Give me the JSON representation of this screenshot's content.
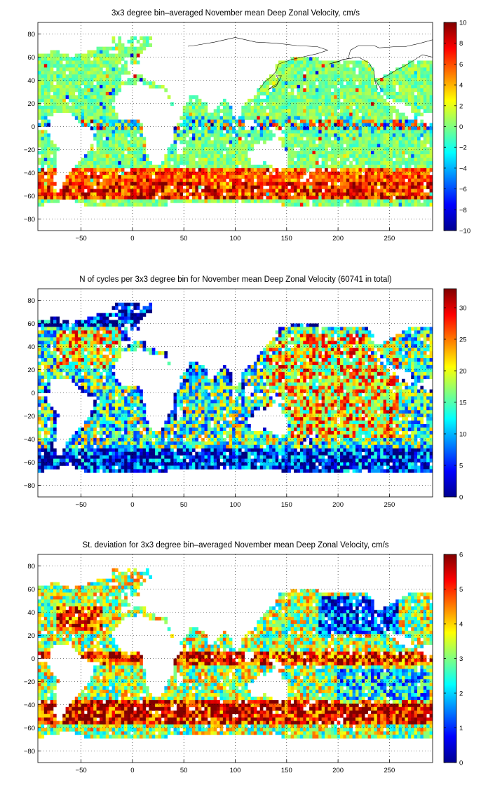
{
  "figure": {
    "panels": [
      {
        "id": "velocity",
        "title": "3x3 degree bin–averaged November mean Deep Zonal Velocity, cm/s",
        "colorbar": {
          "min": -10,
          "max": 10,
          "ticks": [
            "10",
            "8",
            "6",
            "4",
            "2",
            "0",
            "−2",
            "−4",
            "−6",
            "−8",
            "−10"
          ]
        }
      },
      {
        "id": "counts",
        "title": "N of cycles per 3x3 degree bin for November mean Deep Zonal Velocity (60741 in total)",
        "colorbar": {
          "min": 0,
          "max": 33,
          "ticks": [
            "30",
            "25",
            "20",
            "15",
            "10",
            "5",
            "0"
          ]
        }
      },
      {
        "id": "stddev",
        "title": "St. deviation for 3x3 degree bin–averaged November mean Deep Zonal Velocity, cm/s",
        "colorbar": {
          "min": 0,
          "max": 6,
          "ticks": [
            "6",
            "5",
            "4",
            "3",
            "2",
            "1",
            "0"
          ]
        }
      }
    ],
    "x_ticks": [
      "−50",
      "0",
      "50",
      "100",
      "150",
      "200",
      "250"
    ],
    "y_ticks": [
      "80",
      "60",
      "40",
      "20",
      "0",
      "−20",
      "−40",
      "−60",
      "−80"
    ],
    "colormap": "jet",
    "colors": {
      "land": "#ffffff",
      "coast": "#000000",
      "grid": "#000000"
    }
  }
}
